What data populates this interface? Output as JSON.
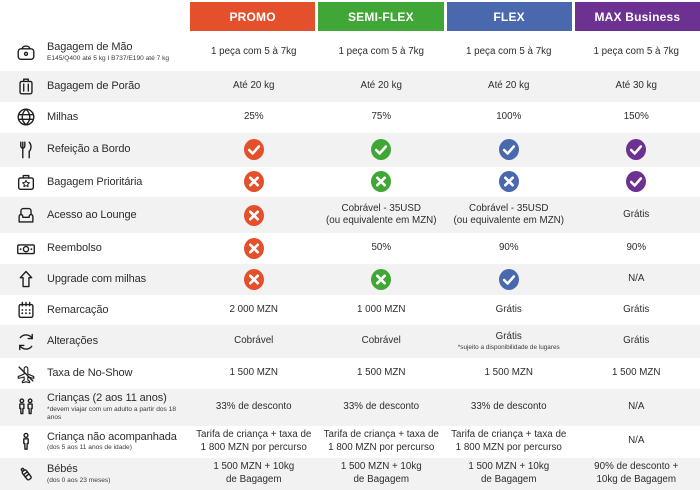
{
  "colors": {
    "stripe": "#F2F2F2",
    "text": "#2D2D2D"
  },
  "chart_data": {
    "type": "table",
    "title": "",
    "columns": [
      "PROMO",
      "SEMI-FLEX",
      "FLEX",
      "MAX Business"
    ],
    "rows": [
      {
        "feature": "Bagagem de Mão",
        "values": [
          "1 peça com 5 à 7kg",
          "1 peça com 5 à 7kg",
          "1 peça com 5 à 7kg",
          "1 peça com 5 à 7kg"
        ]
      },
      {
        "feature": "Bagagem de Porão",
        "values": [
          "Até 20 kg",
          "Até 20 kg",
          "Até 20 kg",
          "Até 30 kg"
        ]
      },
      {
        "feature": "Milhas",
        "values": [
          "25%",
          "75%",
          "100%",
          "150%"
        ]
      },
      {
        "feature": "Refeição a Bordo",
        "values": [
          "sim",
          "sim",
          "sim",
          "sim"
        ]
      },
      {
        "feature": "Bagagem Prioritária",
        "values": [
          "não",
          "não",
          "não",
          "sim"
        ]
      },
      {
        "feature": "Acesso ao Lounge",
        "values": [
          "não",
          "Cobrável - 35USD (ou equivalente em MZN)",
          "Cobrável - 35USD (ou equivalente em MZN)",
          "Grátis"
        ]
      },
      {
        "feature": "Reembolso",
        "values": [
          "não",
          "50%",
          "90%",
          "90%"
        ]
      },
      {
        "feature": "Upgrade com milhas",
        "values": [
          "não",
          "não",
          "sim",
          "N/A"
        ]
      },
      {
        "feature": "Remarcação",
        "values": [
          "2 000 MZN",
          "1 000 MZN",
          "Grátis",
          "Grátis"
        ]
      },
      {
        "feature": "Alterações",
        "values": [
          "Cobrável",
          "Cobrável",
          "Grátis *sujeito a disponibilidade de lugares",
          "Grátis"
        ]
      },
      {
        "feature": "Taxa de No-Show",
        "values": [
          "1 500 MZN",
          "1 500 MZN",
          "1 500 MZN",
          "1 500 MZN"
        ]
      },
      {
        "feature": "Crianças (2 aos 11 anos)",
        "values": [
          "33% de desconto",
          "33% de desconto",
          "33% de desconto",
          "N/A"
        ]
      },
      {
        "feature": "Criança não acompanhada",
        "values": [
          "Tarifa de criança + taxa de 1 800 MZN por percurso",
          "Tarifa de criança + taxa de 1 800 MZN por percurso",
          "Tarifa de criança + taxa de 1 800 MZN por percurso",
          "N/A"
        ]
      },
      {
        "feature": "Bébés",
        "values": [
          "1 500 MZN + 10kg de Bagagem",
          "1 500 MZN + 10kg de Bagagem",
          "1 500 MZN + 10kg de Bagagem",
          "90% de desconto + 10kg de Bagagem"
        ]
      }
    ]
  },
  "table": {
    "columns": [
      {
        "id": "promo",
        "label": "PROMO",
        "color": "#E4502B"
      },
      {
        "id": "semi-flex",
        "label": "SEMI-FLEX",
        "color": "#40A636"
      },
      {
        "id": "flex",
        "label": "FLEX",
        "color": "#4A68AE"
      },
      {
        "id": "max-business",
        "label": "MAX Business",
        "color": "#6C3191"
      }
    ],
    "rows": [
      {
        "icon": "hand-luggage-icon",
        "label": "Bagagem de Mão",
        "sublabel": "E145/Q400 até 5 kg I B737/E190 até 7 kg",
        "cells": [
          {
            "type": "text",
            "lines": [
              "1 peça com 5 à 7kg"
            ]
          },
          {
            "type": "text",
            "lines": [
              "1 peça com 5 à 7kg"
            ]
          },
          {
            "type": "text",
            "lines": [
              "1 peça com 5 à 7kg"
            ]
          },
          {
            "type": "text",
            "lines": [
              "1 peça com 5 à 7kg"
            ]
          }
        ]
      },
      {
        "icon": "checked-baggage-icon",
        "label": "Bagagem de Porão",
        "cells": [
          {
            "type": "text",
            "lines": [
              "Até 20 kg"
            ]
          },
          {
            "type": "text",
            "lines": [
              "Até 20 kg"
            ]
          },
          {
            "type": "text",
            "lines": [
              "Até 20 kg"
            ]
          },
          {
            "type": "text",
            "lines": [
              "Até 30 kg"
            ]
          }
        ]
      },
      {
        "icon": "globe-icon",
        "label": "Milhas",
        "cells": [
          {
            "type": "text",
            "lines": [
              "25%"
            ]
          },
          {
            "type": "text",
            "lines": [
              "75%"
            ]
          },
          {
            "type": "text",
            "lines": [
              "100%"
            ]
          },
          {
            "type": "text",
            "lines": [
              "150%"
            ]
          }
        ]
      },
      {
        "icon": "cutlery-icon",
        "label": "Refeição a Bordo",
        "cells": [
          {
            "type": "check"
          },
          {
            "type": "check"
          },
          {
            "type": "check"
          },
          {
            "type": "check"
          }
        ]
      },
      {
        "icon": "priority-baggage-icon",
        "label": "Bagagem Prioritária",
        "cells": [
          {
            "type": "cross"
          },
          {
            "type": "cross"
          },
          {
            "type": "cross"
          },
          {
            "type": "check"
          }
        ]
      },
      {
        "icon": "lounge-icon",
        "label": "Acesso ao Lounge",
        "cells": [
          {
            "type": "cross"
          },
          {
            "type": "text",
            "lines": [
              "Cobrável - 35USD",
              "(ou equivalente em MZN)"
            ]
          },
          {
            "type": "text",
            "lines": [
              "Cobrável - 35USD",
              "(ou equivalente em MZN)"
            ]
          },
          {
            "type": "text",
            "lines": [
              "Grátis"
            ]
          }
        ]
      },
      {
        "icon": "banknote-icon",
        "label": "Reembolso",
        "cells": [
          {
            "type": "cross"
          },
          {
            "type": "text",
            "lines": [
              "50%"
            ]
          },
          {
            "type": "text",
            "lines": [
              "90%"
            ]
          },
          {
            "type": "text",
            "lines": [
              "90%"
            ]
          }
        ]
      },
      {
        "icon": "upgrade-arrow-icon",
        "label": "Upgrade com milhas",
        "cells": [
          {
            "type": "cross"
          },
          {
            "type": "cross"
          },
          {
            "type": "check"
          },
          {
            "type": "text",
            "lines": [
              "N/A"
            ]
          }
        ]
      },
      {
        "icon": "calendar-icon",
        "label": "Remarcação",
        "cells": [
          {
            "type": "text",
            "lines": [
              "2 000 MZN"
            ]
          },
          {
            "type": "text",
            "lines": [
              "1 000 MZN"
            ]
          },
          {
            "type": "text",
            "lines": [
              "Grátis"
            ]
          },
          {
            "type": "text",
            "lines": [
              "Grátis"
            ]
          }
        ]
      },
      {
        "icon": "refresh-arrows-icon",
        "label": "Alterações",
        "cells": [
          {
            "type": "text",
            "lines": [
              "Cobrável"
            ]
          },
          {
            "type": "text",
            "lines": [
              "Cobrável"
            ]
          },
          {
            "type": "text",
            "lines": [
              "Grátis"
            ],
            "note": "*sujeito a disponibilidade de lugares"
          },
          {
            "type": "text",
            "lines": [
              "Grátis"
            ]
          }
        ]
      },
      {
        "icon": "no-show-plane-icon",
        "label": "Taxa de No-Show",
        "cells": [
          {
            "type": "text",
            "lines": [
              "1 500 MZN"
            ]
          },
          {
            "type": "text",
            "lines": [
              "1 500 MZN"
            ]
          },
          {
            "type": "text",
            "lines": [
              "1 500 MZN"
            ]
          },
          {
            "type": "text",
            "lines": [
              "1 500 MZN"
            ]
          }
        ]
      },
      {
        "icon": "children-icon",
        "label": "Crianças (2 aos 11 anos)",
        "sublabel": "*devem viajar com um adulto a partir dos 18 anos",
        "cells": [
          {
            "type": "text",
            "lines": [
              "33% de desconto"
            ]
          },
          {
            "type": "text",
            "lines": [
              "33% de desconto"
            ]
          },
          {
            "type": "text",
            "lines": [
              "33% de desconto"
            ]
          },
          {
            "type": "text",
            "lines": [
              "N/A"
            ]
          }
        ]
      },
      {
        "icon": "child-icon",
        "label": "Criança não acompanhada",
        "sublabel": "(dos 5 aos 11 anos de idade)",
        "cells": [
          {
            "type": "text",
            "lines": [
              "Tarifa de criança + taxa de",
              "1 800 MZN por percurso"
            ]
          },
          {
            "type": "text",
            "lines": [
              "Tarifa de criança + taxa de",
              "1 800 MZN por percurso"
            ]
          },
          {
            "type": "text",
            "lines": [
              "Tarifa de criança + taxa de",
              "1 800 MZN por percurso"
            ]
          },
          {
            "type": "text",
            "lines": [
              "N/A"
            ]
          }
        ]
      },
      {
        "icon": "baby-bottle-icon",
        "label": "Bébés",
        "sublabel": "(dos 0 aos 23 meses)",
        "cells": [
          {
            "type": "text",
            "lines": [
              "1 500 MZN + 10kg",
              "de Bagagem"
            ]
          },
          {
            "type": "text",
            "lines": [
              "1 500 MZN + 10kg",
              "de Bagagem"
            ]
          },
          {
            "type": "text",
            "lines": [
              "1 500 MZN + 10kg",
              "de Bagagem"
            ]
          },
          {
            "type": "text",
            "lines": [
              "90% de desconto +",
              "10kg de Bagagem"
            ]
          }
        ]
      }
    ]
  }
}
